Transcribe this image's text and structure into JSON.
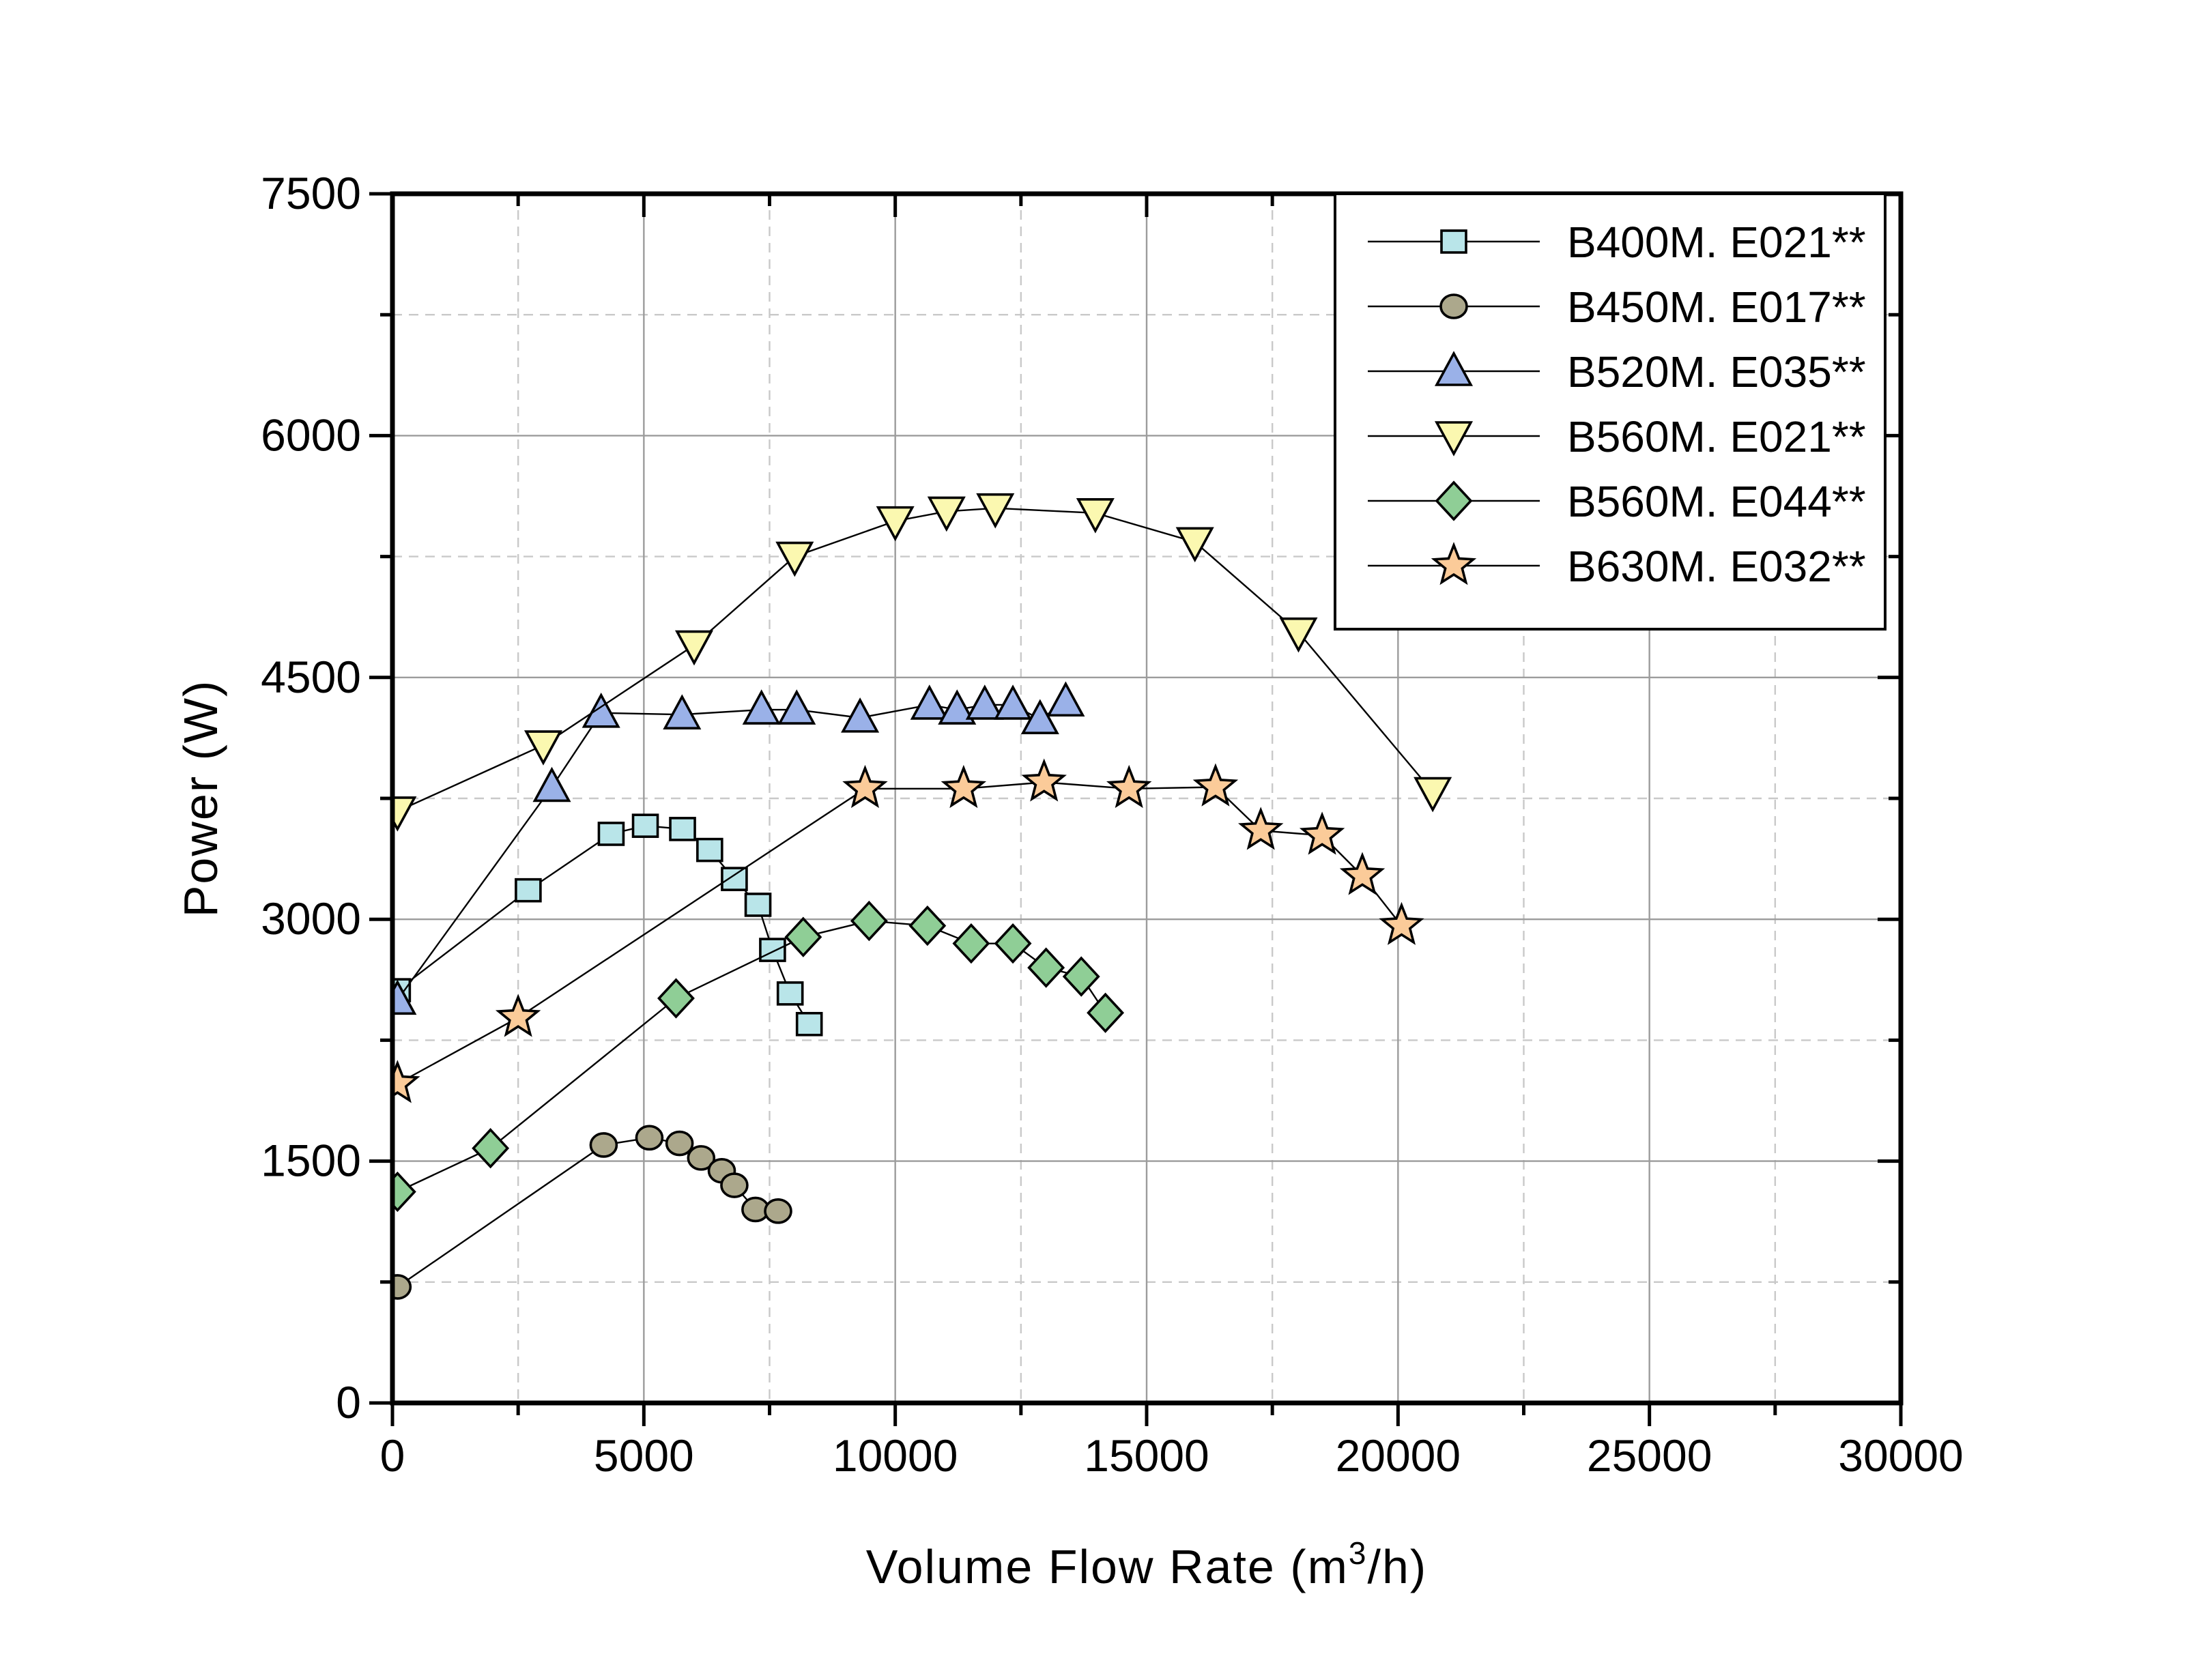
{
  "chart_data": {
    "type": "scatter",
    "title": "",
    "xlabel": "Volume Flow Rate (m³/h)",
    "xlabel_parts": [
      "Volume Flow Rate (m",
      "3",
      "/h)"
    ],
    "ylabel": "Power (W)",
    "xlim": [
      0,
      30000
    ],
    "ylim": [
      0,
      7500
    ],
    "x_major_ticks": [
      0,
      5000,
      10000,
      15000,
      20000,
      25000,
      30000
    ],
    "x_tick_labels": [
      "0",
      "5000",
      "10000",
      "15000",
      "20000",
      "25000",
      "30000"
    ],
    "x_minor_ticks": [
      2500,
      7500,
      12500,
      17500,
      22500,
      27500
    ],
    "y_major_ticks": [
      0,
      1500,
      3000,
      4500,
      6000,
      7500
    ],
    "y_tick_labels": [
      "0",
      "1500",
      "3000",
      "4500",
      "6000",
      "7500"
    ],
    "y_minor_ticks": [
      750,
      2250,
      3750,
      5250,
      6750
    ],
    "grid": {
      "major_color": "#9c9c9c",
      "minor_color": "#c9c9c9",
      "minor_dash": "14 10"
    },
    "legend_position": "top-right",
    "line_color": "#000000",
    "series": [
      {
        "name": "B400M. E021**",
        "marker": "square",
        "fill": "#b9e5e9",
        "points": [
          [
            100,
            2560
          ],
          [
            2700,
            3180
          ],
          [
            4350,
            3530
          ],
          [
            5030,
            3580
          ],
          [
            5770,
            3560
          ],
          [
            6310,
            3430
          ],
          [
            6800,
            3250
          ],
          [
            7270,
            3090
          ],
          [
            7560,
            2810
          ],
          [
            7910,
            2540
          ],
          [
            8290,
            2350
          ]
        ]
      },
      {
        "name": "B450M. E017**",
        "marker": "circle",
        "fill": "#aca88c",
        "points": [
          [
            100,
            720
          ],
          [
            4200,
            1600
          ],
          [
            5110,
            1645
          ],
          [
            5710,
            1610
          ],
          [
            6140,
            1520
          ],
          [
            6550,
            1440
          ],
          [
            6800,
            1350
          ],
          [
            7220,
            1200
          ],
          [
            7670,
            1190
          ]
        ]
      },
      {
        "name": "B520M. E035**",
        "marker": "triangle-up",
        "fill": "#9ab1e8",
        "points": [
          [
            100,
            2500
          ],
          [
            3170,
            3820
          ],
          [
            4150,
            4280
          ],
          [
            5760,
            4270
          ],
          [
            7340,
            4300
          ],
          [
            8040,
            4300
          ],
          [
            9300,
            4250
          ],
          [
            10680,
            4330
          ],
          [
            11230,
            4300
          ],
          [
            11780,
            4330
          ],
          [
            12340,
            4330
          ],
          [
            12880,
            4240
          ],
          [
            13390,
            4350
          ]
        ]
      },
      {
        "name": "B560M. E021**",
        "marker": "triangle-down",
        "fill": "#fbf8b0",
        "points": [
          [
            100,
            3670
          ],
          [
            3000,
            4080
          ],
          [
            6000,
            4700
          ],
          [
            8000,
            5250
          ],
          [
            10000,
            5470
          ],
          [
            11020,
            5530
          ],
          [
            11990,
            5550
          ],
          [
            13980,
            5520
          ],
          [
            15960,
            5340
          ],
          [
            18020,
            4780
          ],
          [
            20690,
            3790
          ]
        ]
      },
      {
        "name": "B560M. E044**",
        "marker": "diamond",
        "fill": "#8fce96",
        "points": [
          [
            100,
            1310
          ],
          [
            1950,
            1580
          ],
          [
            5640,
            2510
          ],
          [
            8170,
            2890
          ],
          [
            9480,
            2990
          ],
          [
            10640,
            2960
          ],
          [
            11510,
            2850
          ],
          [
            12340,
            2850
          ],
          [
            13000,
            2700
          ],
          [
            13700,
            2645
          ],
          [
            14180,
            2420
          ]
        ]
      },
      {
        "name": "B630M. E032**",
        "marker": "star",
        "fill": "#fbcb99",
        "points": [
          [
            100,
            1980
          ],
          [
            2500,
            2390
          ],
          [
            9400,
            3810
          ],
          [
            11360,
            3810
          ],
          [
            12960,
            3850
          ],
          [
            14650,
            3810
          ],
          [
            16370,
            3820
          ],
          [
            17270,
            3550
          ],
          [
            18490,
            3520
          ],
          [
            19290,
            3270
          ],
          [
            20070,
            2960
          ]
        ]
      }
    ]
  }
}
